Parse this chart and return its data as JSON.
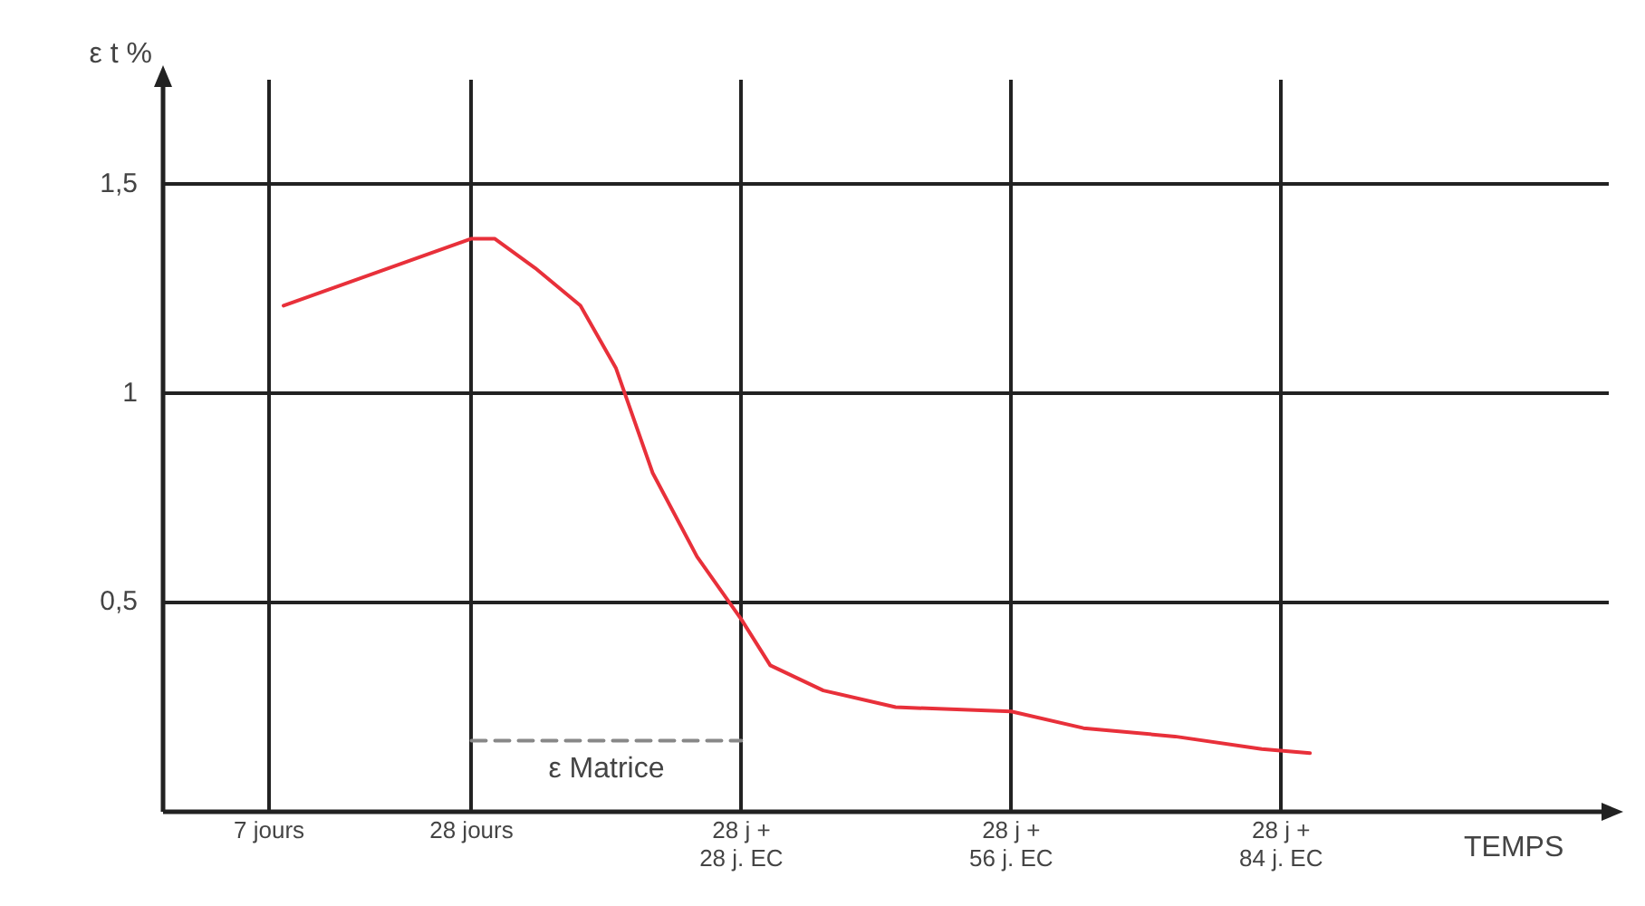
{
  "chart_data": {
    "type": "line",
    "ylabel": "ε t %",
    "xlabel": "TEMPS",
    "xlim": [
      -4,
      146
    ],
    "ylim": [
      0,
      1.75
    ],
    "xticks": [
      {
        "value": 7,
        "label": "7 jours"
      },
      {
        "value": 28,
        "label": "28 jours"
      },
      {
        "value": 56,
        "label": "28 j + 28 j. EC"
      },
      {
        "value": 84,
        "label": "28 j + 56 j. EC"
      },
      {
        "value": 112,
        "label": "28 j + 84 j. EC"
      }
    ],
    "yticks": [
      {
        "value": 0.5,
        "label": "0,5"
      },
      {
        "value": 1,
        "label": "1"
      },
      {
        "value": 1.5,
        "label": "1,5"
      }
    ],
    "grid": true,
    "legend": false,
    "marker": "none",
    "series": [
      {
        "color": "#e8303a",
        "line_style": "solid",
        "x": [
          8.5,
          28,
          30.4,
          34.6,
          39.3,
          43,
          46.8,
          51.4,
          56,
          59,
          64.5,
          72,
          84,
          91.5,
          101,
          110,
          115
        ],
        "values": [
          1.21,
          1.37,
          1.37,
          1.3,
          1.21,
          1.06,
          0.81,
          0.61,
          0.46,
          0.35,
          0.29,
          0.25,
          0.24,
          0.2,
          0.18,
          0.15,
          0.14
        ]
      },
      {
        "name": "ε Matrice",
        "color": "#888888",
        "line_style": "dashed",
        "x": [
          28,
          56
        ],
        "values": [
          0.17,
          0.17
        ]
      }
    ]
  }
}
